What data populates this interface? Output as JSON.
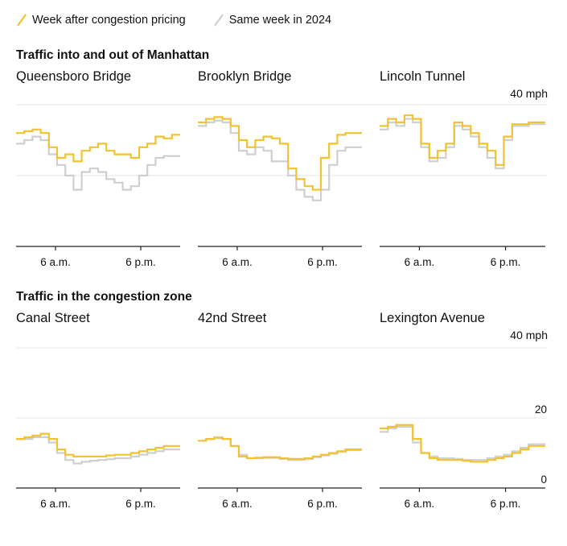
{
  "legend": {
    "after_label": "Week after congestion pricing",
    "before_label": "Same week in 2024"
  },
  "colors": {
    "after": "#f2c230",
    "before": "#cfcfcf",
    "grid": "#e6e6e6",
    "axis": "#222222"
  },
  "sections": {
    "top": {
      "title": "Traffic into and out of Manhattan",
      "unit_label": "40 mph"
    },
    "bottom": {
      "title": "Traffic in the congestion zone",
      "unit_label": "40 mph"
    }
  },
  "chart_data": [
    {
      "type": "line",
      "style": "step",
      "title": "Queensboro Bridge",
      "x_ticks": [
        "6 a.m.",
        "6 p.m."
      ],
      "ylim": [
        0,
        40
      ],
      "y_ticks": [
        0,
        20,
        40
      ],
      "series": [
        {
          "name": "Week after congestion pricing",
          "values": [
            32,
            32.5,
            33,
            32,
            28,
            25,
            26,
            24,
            27,
            28,
            29,
            27,
            26,
            26,
            25,
            28,
            29,
            31,
            30.5,
            31.5
          ]
        },
        {
          "name": "Same week in 2024",
          "values": [
            29,
            30,
            31,
            30,
            26,
            23,
            20,
            16,
            21,
            22,
            21,
            19,
            18,
            16,
            17,
            20,
            23,
            25,
            25.5,
            25.5
          ]
        }
      ]
    },
    {
      "type": "line",
      "style": "step",
      "title": "Brooklyn Bridge",
      "x_ticks": [
        "6 a.m.",
        "6 p.m."
      ],
      "ylim": [
        0,
        40
      ],
      "series": [
        {
          "name": "Week after congestion pricing",
          "values": [
            35,
            36,
            36.5,
            36,
            34,
            30,
            28,
            30,
            31,
            30.5,
            29,
            22,
            19,
            17,
            16,
            25,
            29,
            31.5,
            32,
            32
          ]
        },
        {
          "name": "Same week in 2024",
          "values": [
            34,
            35,
            35.5,
            35,
            32,
            27,
            26,
            28,
            27,
            24,
            24,
            20,
            16,
            14,
            13,
            16,
            23,
            27,
            28,
            28
          ]
        }
      ]
    },
    {
      "type": "line",
      "style": "step",
      "title": "Lincoln Tunnel",
      "x_ticks": [
        "6 a.m.",
        "6 p.m."
      ],
      "ylim": [
        0,
        40
      ],
      "series": [
        {
          "name": "Week after congestion pricing",
          "values": [
            34,
            36,
            35,
            37,
            36,
            29,
            25,
            27,
            29,
            35,
            34,
            32,
            29,
            27,
            23,
            31,
            34.5,
            34.5,
            35,
            35
          ]
        },
        {
          "name": "Same week in 2024",
          "values": [
            33,
            35,
            34,
            36,
            35,
            28,
            24,
            25,
            28,
            34,
            33,
            31,
            28,
            25,
            22,
            30,
            34,
            34,
            34.5,
            34.5
          ]
        }
      ]
    },
    {
      "type": "line",
      "style": "step",
      "title": "Canal Street",
      "x_ticks": [
        "6 a.m.",
        "6 p.m."
      ],
      "ylim": [
        0,
        40
      ],
      "series": [
        {
          "name": "Week after congestion pricing",
          "values": [
            14,
            14.5,
            15,
            15.5,
            14,
            11,
            9.5,
            9,
            9,
            9,
            9,
            9.3,
            9.5,
            9.5,
            10,
            10.5,
            11,
            11.5,
            12,
            12
          ]
        },
        {
          "name": "Same week in 2024",
          "values": [
            14,
            14,
            14.5,
            14.5,
            13,
            10,
            8,
            7,
            7.5,
            7.8,
            8,
            8.2,
            8.5,
            8.5,
            9,
            9.5,
            10,
            10.5,
            11,
            11
          ]
        }
      ]
    },
    {
      "type": "line",
      "style": "step",
      "title": "42nd Street",
      "x_ticks": [
        "6 a.m.",
        "6 p.m."
      ],
      "ylim": [
        0,
        40
      ],
      "series": [
        {
          "name": "Week after congestion pricing",
          "values": [
            13.5,
            14,
            14.3,
            14,
            12,
            9,
            8.5,
            8.7,
            8.8,
            8.8,
            8.5,
            8.3,
            8.3,
            8.5,
            9,
            9.5,
            10,
            10.5,
            11,
            11
          ]
        },
        {
          "name": "Same week in 2024",
          "values": [
            13.5,
            14,
            14.5,
            14,
            12,
            9.5,
            8.5,
            8.5,
            8.6,
            8.6,
            8.3,
            8,
            8,
            8.3,
            8.8,
            9.3,
            9.8,
            10.3,
            10.8,
            10.8
          ]
        }
      ]
    },
    {
      "type": "line",
      "style": "step",
      "title": "Lexington Avenue",
      "x_ticks": [
        "6 a.m.",
        "6 p.m."
      ],
      "ylim": [
        0,
        40
      ],
      "y_ticks": [
        0,
        20,
        40
      ],
      "series": [
        {
          "name": "Week after congestion pricing",
          "values": [
            17,
            17.5,
            18,
            18,
            14,
            10,
            8.5,
            8,
            8,
            8,
            7.8,
            7.5,
            7.5,
            8,
            8.5,
            9,
            10,
            11,
            12,
            12
          ]
        },
        {
          "name": "Same week in 2024",
          "values": [
            16,
            17,
            17.5,
            17.5,
            13,
            10,
            9,
            8.5,
            8.5,
            8.3,
            8,
            8,
            8,
            8.5,
            9,
            9.5,
            10.5,
            11.5,
            12.5,
            12.5
          ]
        }
      ]
    }
  ]
}
